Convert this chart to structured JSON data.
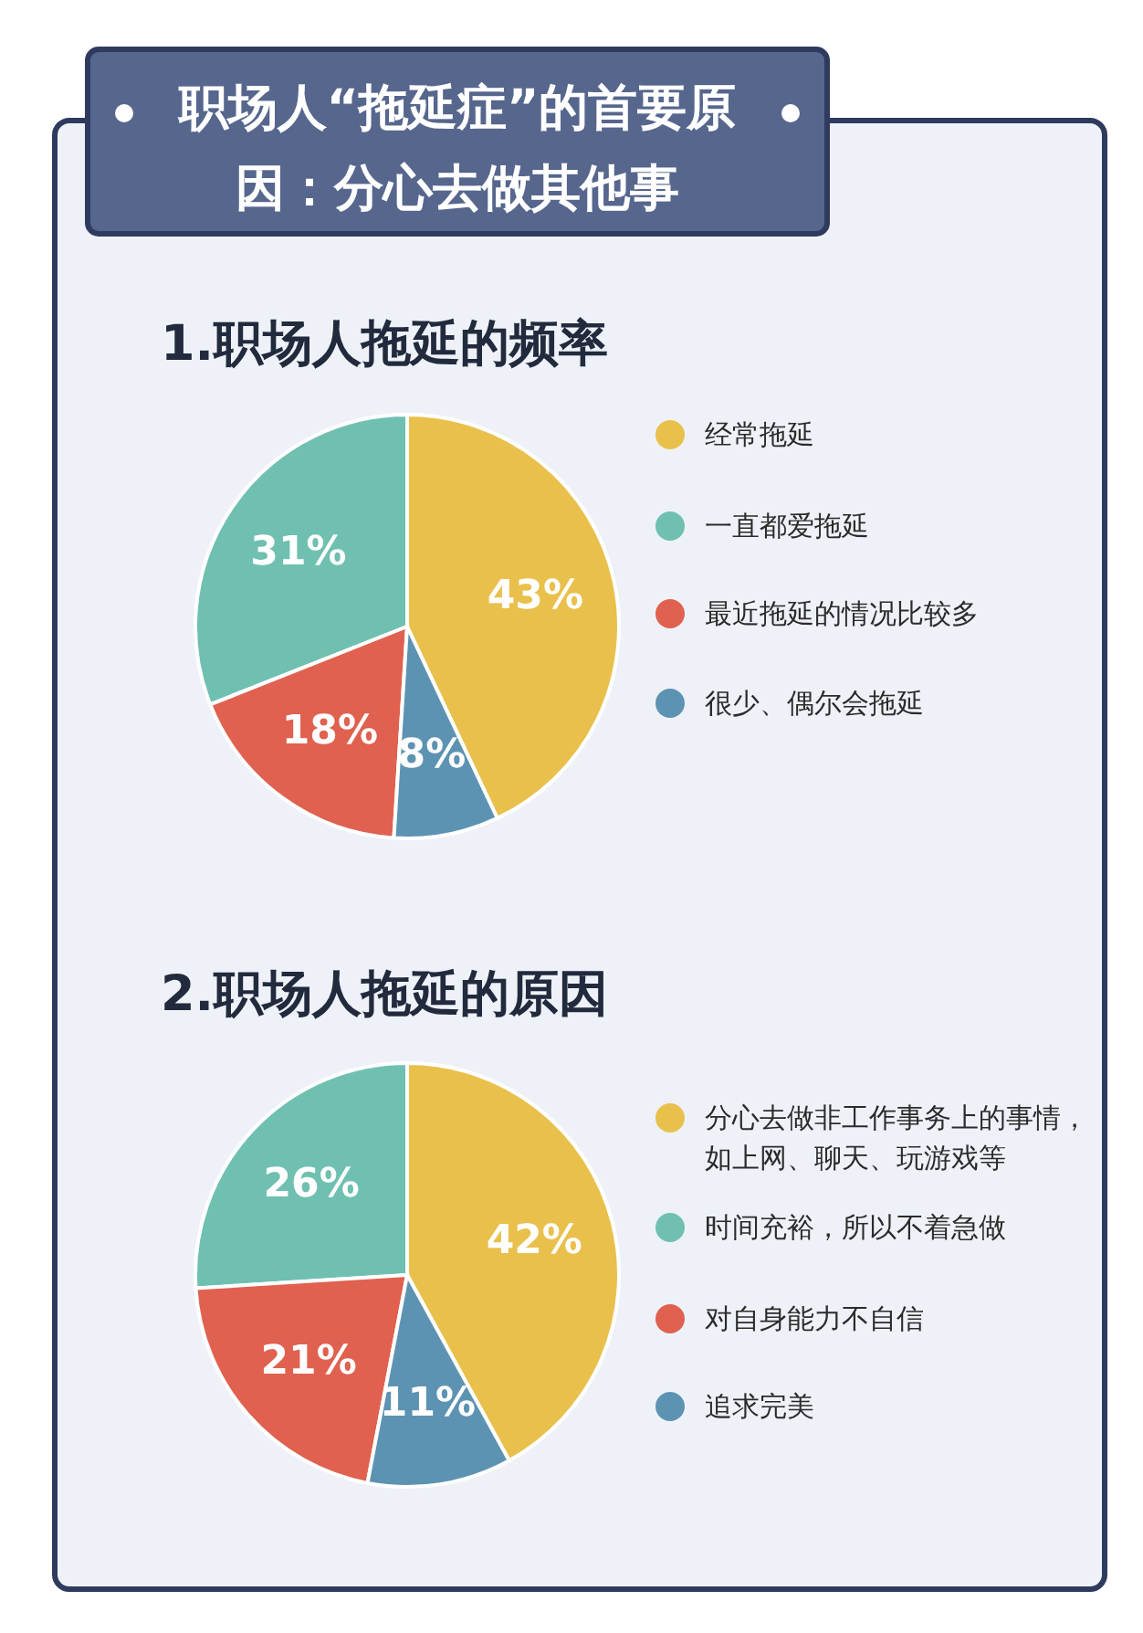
{
  "chart_data": [
    {
      "type": "pie",
      "title": "职场人“拖延症”的首要原因：分心去做其他事",
      "subtitle": "1.职场人拖延的频率",
      "categories": [
        "经常拖延",
        "一直都爱拖延",
        "最近拖延的情况比较多",
        "很少、偶尔会拖延"
      ],
      "values": [
        43,
        31,
        18,
        8
      ],
      "value_labels": [
        "43%",
        "31%",
        "18%",
        "8%"
      ],
      "colors": [
        "#e9c04c",
        "#6fc0b1",
        "#e0614f",
        "#5d93b2"
      ],
      "legend": "right"
    },
    {
      "type": "pie",
      "title": "2.职场人拖延的原因",
      "categories": [
        "分心去做非工作事务上的事情，如上网、聊天、玩游戏等",
        "时间充裕，所以不着急做",
        "对自身能力不自信",
        "追求完美"
      ],
      "values": [
        42,
        26,
        21,
        11
      ],
      "value_labels": [
        "42%",
        "26%",
        "21%",
        "11%"
      ],
      "colors": [
        "#e9c04c",
        "#6fc0b1",
        "#e0614f",
        "#5d93b2"
      ],
      "legend": "right"
    }
  ]
}
